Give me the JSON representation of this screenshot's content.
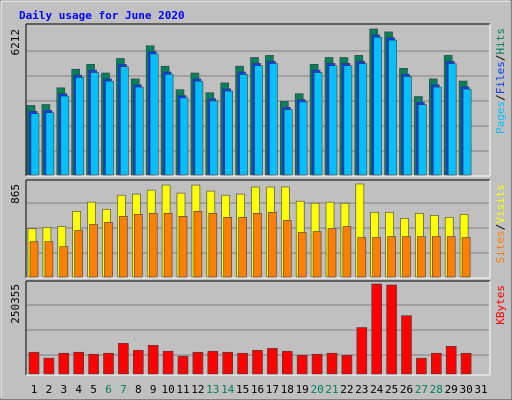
{
  "chart_data": [
    {
      "type": "bar",
      "title": "Daily usage for June 2020",
      "categories": [
        "1",
        "2",
        "3",
        "4",
        "5",
        "6",
        "7",
        "8",
        "9",
        "10",
        "11",
        "12",
        "13",
        "14",
        "15",
        "16",
        "17",
        "18",
        "19",
        "20",
        "21",
        "22",
        "23",
        "24",
        "25",
        "26",
        "27",
        "28",
        "29",
        "30",
        "31"
      ],
      "category_colors": [
        "#000000",
        "#000000",
        "#000000",
        "#000000",
        "#000000",
        "#00805c",
        "#00805c",
        "#000000",
        "#000000",
        "#000000",
        "#000000",
        "#000000",
        "#00805c",
        "#00805c",
        "#000000",
        "#000000",
        "#000000",
        "#000000",
        "#000000",
        "#00805c",
        "#00805c",
        "#000000",
        "#000000",
        "#000000",
        "#000000",
        "#000000",
        "#00805c",
        "#00805c",
        "#000000",
        "#000000",
        "#000000"
      ],
      "legend_separator": "/",
      "series": [
        {
          "name": "Hits",
          "color": "#00805c",
          "values": [
            2960,
            3000,
            3710,
            4500,
            4710,
            4340,
            4960,
            4090,
            5500,
            4630,
            3630,
            4340,
            3500,
            3920,
            4630,
            5000,
            5090,
            3130,
            3460,
            4710,
            5000,
            5000,
            5090,
            6212,
            6090,
            4540,
            3340,
            4090,
            5090,
            4000,
            null
          ]
        },
        {
          "name": "Files",
          "color": "#0040ff",
          "values": [
            2710,
            2750,
            3460,
            4250,
            4460,
            4090,
            4710,
            3840,
            5250,
            4380,
            3380,
            4090,
            3250,
            3670,
            4380,
            4750,
            4840,
            2880,
            3210,
            4460,
            4750,
            4750,
            4840,
            5960,
            5840,
            4290,
            3090,
            3840,
            4840,
            3750,
            null
          ]
        },
        {
          "name": "Pages",
          "color": "#00c0ff",
          "values": [
            2610,
            2650,
            3360,
            4150,
            4360,
            3990,
            4610,
            3740,
            5150,
            4280,
            3280,
            3990,
            3150,
            3570,
            4280,
            4650,
            4740,
            2780,
            3110,
            4360,
            4650,
            4650,
            4740,
            5860,
            5740,
            4190,
            2990,
            3740,
            4740,
            3650,
            null
          ]
        }
      ],
      "ylim": [
        0,
        6212
      ],
      "yticks": [
        6212
      ]
    },
    {
      "type": "bar",
      "series": [
        {
          "name": "Visits",
          "color": "#ffff00",
          "values": [
            451,
            461,
            470,
            611,
            696,
            630,
            761,
            771,
            808,
            855,
            780,
            855,
            799,
            761,
            771,
            837,
            837,
            837,
            705,
            686,
            696,
            686,
            865,
            602,
            602,
            545,
            592,
            573,
            555,
            583,
            null
          ]
        },
        {
          "name": "Sites",
          "color": "#ff8000",
          "values": [
            329,
            329,
            282,
            432,
            489,
            508,
            564,
            583,
            592,
            592,
            564,
            611,
            592,
            555,
            555,
            592,
            602,
            526,
            414,
            423,
            451,
            470,
            367,
            367,
            376,
            376,
            376,
            376,
            376,
            367,
            null
          ]
        }
      ],
      "ylim": [
        0,
        865
      ],
      "yticks": [
        865
      ]
    },
    {
      "type": "bar",
      "series": [
        {
          "name": "KBytes",
          "color": "#ff0000",
          "values": [
            60522,
            44016,
            57771,
            60522,
            55020,
            57771,
            85281,
            66024,
            79779,
            63273,
            49518,
            60522,
            63273,
            60522,
            57771,
            66024,
            71526,
            63273,
            52269,
            55020,
            57771,
            52269,
            129297,
            250355,
            247590,
            162309,
            44016,
            57771,
            77028,
            57771,
            null
          ]
        }
      ],
      "ylim": [
        0,
        250355
      ],
      "yticks": [
        250355
      ]
    }
  ]
}
